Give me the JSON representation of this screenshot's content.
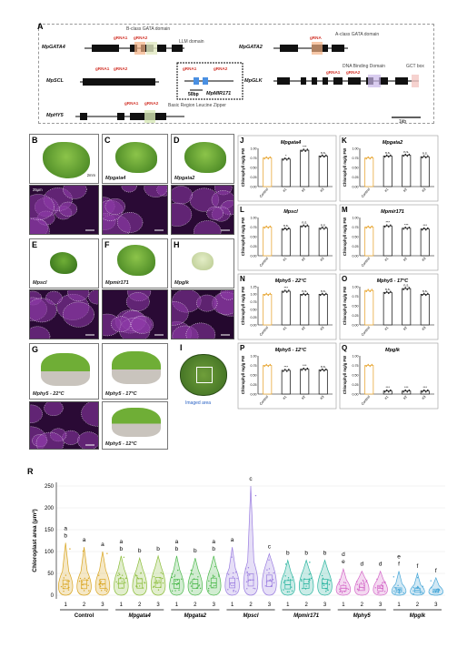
{
  "panelA": {
    "label": "A",
    "genes": [
      {
        "name": "MpGATA4",
        "grnas": [
          "gRNA1",
          "gRNA2"
        ],
        "annotations": [
          "B-class GATA domain",
          "LLM domain"
        ]
      },
      {
        "name": "MpGATA2",
        "grnas": [
          "gRNA"
        ],
        "annotations": [
          "A-class GATA domain"
        ]
      },
      {
        "name": "MpSCL",
        "grnas": [
          "gRNA1",
          "gRNA2"
        ],
        "annotations": []
      },
      {
        "name": "MpMIR171",
        "grnas": [
          "gRNA1",
          "gRNA2"
        ],
        "annotations": [
          "50bp"
        ]
      },
      {
        "name": "MpGLK",
        "grnas": [
          "gRNA1",
          "gRNA2"
        ],
        "annotations": [
          "DNA Binding Domain",
          "GCT box"
        ]
      },
      {
        "name": "MpHY5",
        "grnas": [
          "gRNA1",
          "gRNA2"
        ],
        "annotations": [
          "Basic Region Leucine Zipper"
        ]
      }
    ],
    "scale": "1kb"
  },
  "tiles": {
    "B": {
      "label": "B",
      "caption": "",
      "scale_top": "2mm",
      "scale_micro": "25μm"
    },
    "C": {
      "label": "C",
      "caption": "Mpgata4"
    },
    "D": {
      "label": "D",
      "caption": "Mpgata2"
    },
    "E": {
      "label": "E",
      "caption": "Mpscl"
    },
    "F": {
      "label": "F",
      "caption": "Mpmir171"
    },
    "H": {
      "label": "H",
      "caption": "Mpglk"
    },
    "G": {
      "label": "G",
      "captions": [
        "Mphy5 - 22°C",
        "Mphy5 - 17°C",
        "Mphy5 - 12°C"
      ]
    },
    "I": {
      "label": "I",
      "caption": "Imaged area"
    }
  },
  "chart_data": [
    {
      "panel": "J",
      "type": "bar",
      "title": "Mpgata4",
      "ylabel": "Chlorophyll mg/g FW",
      "categories": [
        "Control",
        "#1",
        "#2",
        "#3"
      ],
      "values": [
        0.75,
        0.72,
        0.95,
        0.8
      ],
      "ylim": [
        0,
        1.0
      ],
      "ticks": [
        "0.00",
        "0.25",
        "0.50",
        "0.75",
        "1.00"
      ],
      "sig": [
        "",
        "*",
        "***",
        "n.s."
      ]
    },
    {
      "panel": "K",
      "type": "bar",
      "title": "Mpgata2",
      "ylabel": "Chlorophyll mg/g FW",
      "categories": [
        "Control",
        "#1",
        "#2",
        "#3"
      ],
      "values": [
        0.75,
        0.8,
        0.82,
        0.78
      ],
      "ylim": [
        0,
        1.0
      ],
      "ticks": [
        "0.00",
        "0.25",
        "0.50",
        "0.75",
        "1.00"
      ],
      "sig": [
        "",
        "n.s.",
        "n.s.",
        "n.s."
      ]
    },
    {
      "panel": "L",
      "type": "bar",
      "title": "Mpscl",
      "ylabel": "Chlorophyll mg/g FW",
      "categories": [
        "Control",
        "#1",
        "#2",
        "#3"
      ],
      "values": [
        0.75,
        0.7,
        0.78,
        0.72
      ],
      "ylim": [
        0,
        1.0
      ],
      "ticks": [
        "0.00",
        "0.25",
        "0.50",
        "0.75",
        "1.00"
      ],
      "sig": [
        "",
        "n.s.",
        "n.s.",
        "n.s."
      ]
    },
    {
      "panel": "M",
      "type": "bar",
      "title": "Mpmir171",
      "ylabel": "Chlorophyll mg/g FW",
      "categories": [
        "Control",
        "#1",
        "#2",
        "#3"
      ],
      "values": [
        0.75,
        0.78,
        0.72,
        0.7
      ],
      "ylim": [
        0,
        1.0
      ],
      "ticks": [
        "0.00",
        "0.25",
        "0.50",
        "0.75",
        "1.00"
      ],
      "sig": [
        "",
        "***",
        "***",
        "***"
      ]
    },
    {
      "panel": "N",
      "type": "bar",
      "title": "Mphy5 - 22°C",
      "ylabel": "Chlorophyll mg/g FW",
      "categories": [
        "Control",
        "#1",
        "#2",
        "#3"
      ],
      "values": [
        1.0,
        1.1,
        1.0,
        1.0
      ],
      "ylim": [
        0,
        1.25
      ],
      "ticks": [
        "0.00",
        "0.25",
        "0.50",
        "0.75",
        "1.00",
        "1.25"
      ],
      "sig": [
        "",
        "***",
        "n.s.",
        "n.s."
      ]
    },
    {
      "panel": "O",
      "type": "bar",
      "title": "Mphy5 - 17°C",
      "ylabel": "Chlorophyll mg/g FW",
      "categories": [
        "Control",
        "#1",
        "#2",
        "#3"
      ],
      "values": [
        0.9,
        0.85,
        0.95,
        0.8
      ],
      "ylim": [
        0,
        1.0
      ],
      "ticks": [
        "0.00",
        "0.25",
        "0.50",
        "0.75",
        "1.00"
      ],
      "sig": [
        "",
        "n.s.",
        "n.s.",
        "n.s."
      ]
    },
    {
      "panel": "P",
      "type": "bar",
      "title": "Mphy5 - 12°C",
      "ylabel": "Chlorophyll mg/g FW",
      "categories": [
        "Control",
        "#1",
        "#2",
        "#3"
      ],
      "values": [
        0.75,
        0.62,
        0.65,
        0.63
      ],
      "ylim": [
        0,
        1.0
      ],
      "ticks": [
        "0.00",
        "0.25",
        "0.50",
        "0.75",
        "1.00"
      ],
      "sig": [
        "",
        "***",
        "***",
        "n.s."
      ]
    },
    {
      "panel": "Q",
      "type": "bar",
      "title": "Mpglk",
      "ylabel": "Chlorophyll mg/g FW",
      "categories": [
        "Control",
        "#1",
        "#2",
        "#3"
      ],
      "values": [
        0.75,
        0.08,
        0.08,
        0.08
      ],
      "ylim": [
        0,
        1.0
      ],
      "ticks": [
        "0.00",
        "0.25",
        "0.50",
        "0.75",
        "1.00"
      ],
      "sig": [
        "",
        "***",
        "***",
        "***"
      ]
    }
  ],
  "violin": {
    "label": "R",
    "type": "violin",
    "ylabel": "Chloroplast area (μm²)",
    "yticks": [
      "0",
      "50",
      "100",
      "150",
      "200",
      "250"
    ],
    "ylim": [
      0,
      250
    ],
    "groups": [
      {
        "name": "Control",
        "color": "#d9a520",
        "lines": [
          "1",
          "2",
          "3"
        ],
        "medians": [
          25,
          25,
          26
        ],
        "maxes": [
          120,
          110,
          100
        ],
        "letters": [
          [
            "a",
            "b"
          ],
          [
            "a"
          ],
          [
            "a"
          ]
        ]
      },
      {
        "name": "Mpgata4",
        "color": "#8bbd3a",
        "lines": [
          "1",
          "2",
          "3"
        ],
        "medians": [
          27,
          27,
          29
        ],
        "maxes": [
          90,
          85,
          90
        ],
        "letters": [
          [
            "a",
            "b"
          ],
          [
            "b"
          ],
          [
            "b"
          ]
        ]
      },
      {
        "name": "Mpgata2",
        "color": "#4bb84b",
        "lines": [
          "1",
          "2",
          "3"
        ],
        "medians": [
          26,
          26,
          28
        ],
        "maxes": [
          90,
          85,
          90
        ],
        "letters": [
          [
            "a",
            "b"
          ],
          [
            "b"
          ],
          [
            "a",
            "b"
          ]
        ]
      },
      {
        "name": "Mpscl",
        "color": "#9b7ee0",
        "lines": [
          "1",
          "2",
          "3"
        ],
        "medians": [
          28,
          35,
          33
        ],
        "maxes": [
          110,
          250,
          95
        ],
        "letters": [
          [
            "a"
          ],
          [
            "c"
          ],
          [
            "c"
          ]
        ]
      },
      {
        "name": "Mpmir171",
        "color": "#2bb5a0",
        "lines": [
          "1",
          "2",
          "3"
        ],
        "medians": [
          24,
          26,
          26
        ],
        "maxes": [
          80,
          80,
          80
        ],
        "letters": [
          [
            "b"
          ],
          [
            "b"
          ],
          [
            "b"
          ]
        ]
      },
      {
        "name": "Mphy5",
        "color": "#d468c8",
        "lines": [
          "1",
          "2",
          "3"
        ],
        "medians": [
          16,
          18,
          16
        ],
        "maxes": [
          60,
          55,
          55
        ],
        "letters": [
          [
            "d",
            "e"
          ],
          [
            "d"
          ],
          [
            "d"
          ]
        ]
      },
      {
        "name": "Mpglk",
        "color": "#4aa8d8",
        "lines": [
          "1",
          "2",
          "3"
        ],
        "medians": [
          12,
          11,
          10
        ],
        "maxes": [
          55,
          50,
          40
        ],
        "letters": [
          [
            "e",
            "f"
          ],
          [
            "f"
          ],
          [
            "f"
          ]
        ]
      }
    ]
  }
}
